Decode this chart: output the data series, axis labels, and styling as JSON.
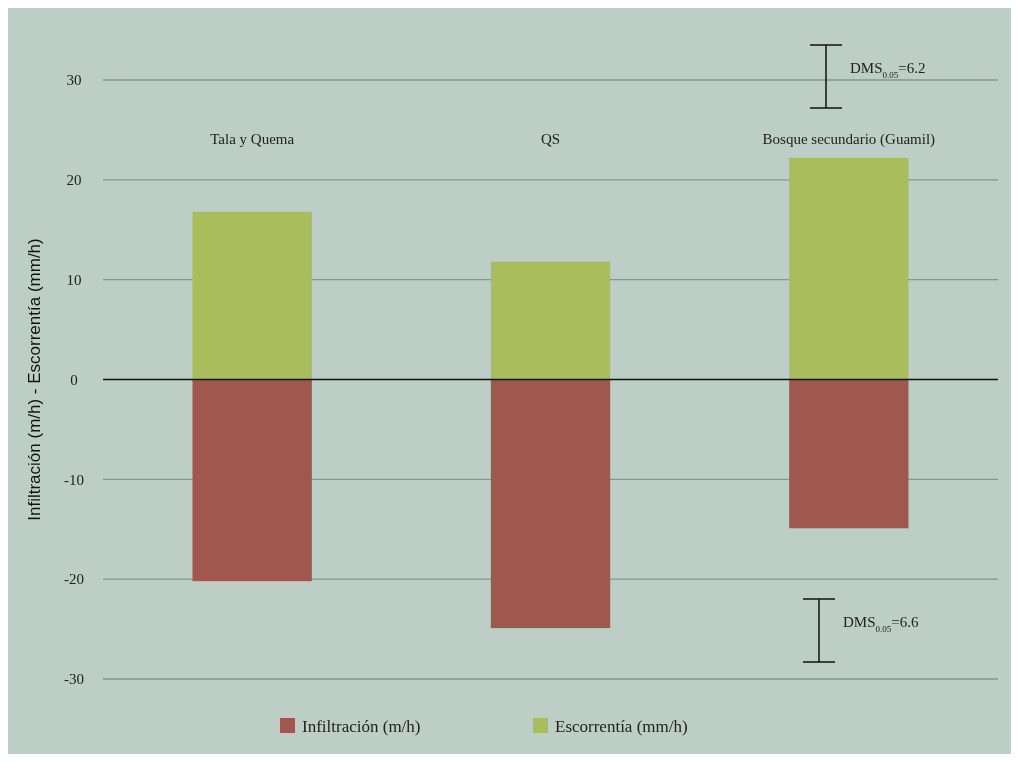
{
  "chart_data": {
    "type": "bar",
    "ylabel": "Infiltración (m/h) - Escorrentía (mm/h)",
    "categories": [
      "Tala y Quema",
      "QS",
      "Bosque secundario (Guamil)"
    ],
    "series": [
      {
        "name": "Infiltración (m/h)",
        "color": "#a0574e",
        "values": [
          -20.2,
          -24.9,
          -14.9
        ]
      },
      {
        "name": "Escorrentía (mm/h)",
        "color": "#aabd5c",
        "values": [
          16.8,
          11.8,
          22.2
        ]
      }
    ],
    "ylim": [
      -30,
      30
    ],
    "yticks": [
      -30,
      -20,
      -10,
      0,
      10,
      20,
      30
    ],
    "stacked": true,
    "grid": "y",
    "legend": "bottom",
    "annotations": [
      "DMS$_{0.05}$=6.2",
      "DMS$_{0.05}$=6.6"
    ]
  }
}
